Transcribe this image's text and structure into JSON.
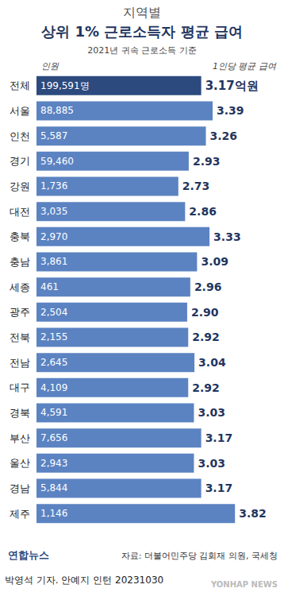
{
  "chart_data": {
    "type": "bar",
    "orientation": "horizontal",
    "supertitle": "지역별",
    "title": "상위 1% 근로소득자 평균 급여",
    "subtitle": "2021년 귀속 근로소득 기준",
    "column_labels": [
      "인원",
      "1인당 평균 급여"
    ],
    "categories": [
      "전체",
      "서울",
      "인천",
      "경기",
      "강원",
      "대전",
      "충북",
      "충남",
      "세종",
      "광주",
      "전북",
      "전남",
      "대구",
      "경북",
      "부산",
      "울산",
      "경남",
      "제주"
    ],
    "values": [
      3.17,
      3.39,
      3.26,
      2.93,
      2.73,
      2.86,
      3.33,
      3.09,
      2.96,
      2.9,
      2.92,
      3.04,
      2.92,
      3.03,
      3.17,
      3.03,
      3.17,
      3.82
    ],
    "value_labels": [
      "3.17억원",
      "3.39",
      "3.26",
      "2.93",
      "2.73",
      "2.86",
      "3.33",
      "3.09",
      "2.96",
      "2.90",
      "2.92",
      "3.04",
      "2.92",
      "3.03",
      "3.17",
      "3.03",
      "3.17",
      "3.82"
    ],
    "counts": [
      199591,
      88885,
      5587,
      59460,
      1736,
      3035,
      2970,
      3861,
      461,
      2504,
      2155,
      2645,
      4109,
      4591,
      7656,
      2943,
      5844,
      1146
    ],
    "count_labels": [
      "199,591명",
      "88,885",
      "5,587",
      "59,460",
      "1,736",
      "3,035",
      "2,970",
      "3,861",
      "461",
      "2,504",
      "2,155",
      "2,645",
      "4,109",
      "4,591",
      "7,656",
      "2,943",
      "5,844",
      "1,146"
    ],
    "colors": [
      "#2c4a7e",
      "#5b83c2",
      "#5b83c2",
      "#5b83c2",
      "#5b83c2",
      "#5b83c2",
      "#5b83c2",
      "#5b83c2",
      "#5b83c2",
      "#5b83c2",
      "#5b83c2",
      "#5b83c2",
      "#5b83c2",
      "#5b83c2",
      "#5b83c2",
      "#5b83c2",
      "#5b83c2",
      "#5b83c2"
    ],
    "xlim": [
      0,
      4
    ],
    "tick_labels": "y",
    "grid": false,
    "data_labels": true,
    "source": "자료: 더불어민주당 김회재 의원, 국세청",
    "credit": "박영석 기자. 안예지 인턴 20231030",
    "logo": "연합뉴스",
    "watermark": "YONHAP NEWS"
  }
}
